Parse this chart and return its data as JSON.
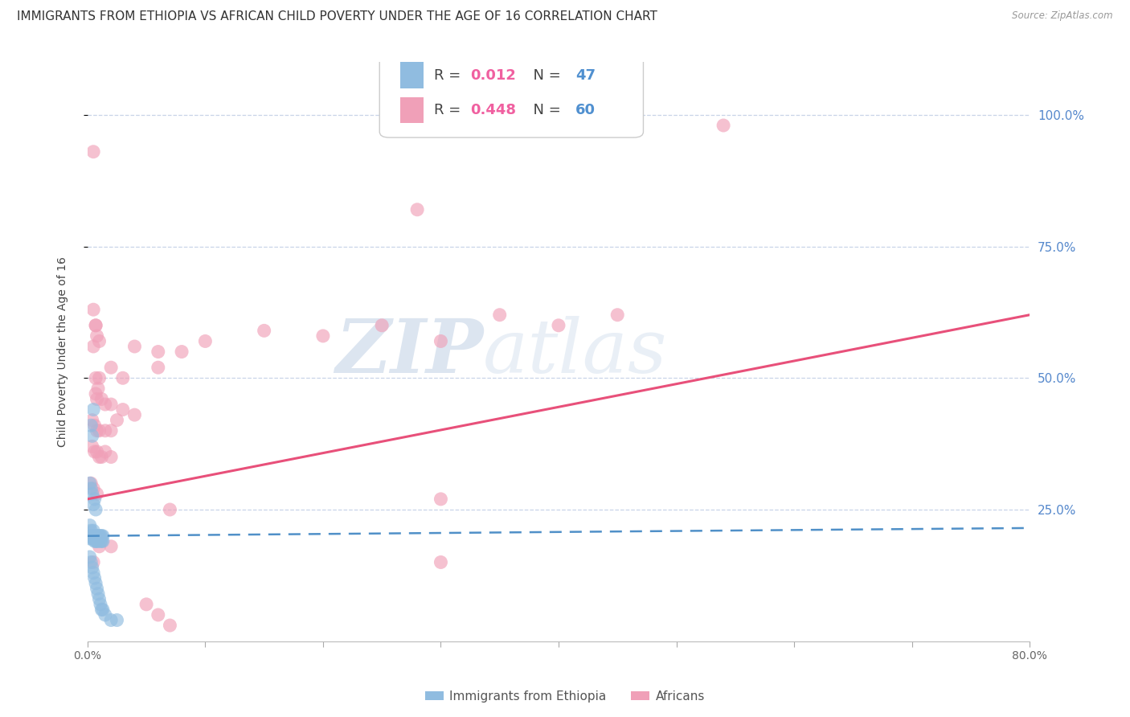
{
  "title": "IMMIGRANTS FROM ETHIOPIA VS AFRICAN CHILD POVERTY UNDER THE AGE OF 16 CORRELATION CHART",
  "source": "Source: ZipAtlas.com",
  "ylabel": "Child Poverty Under the Age of 16",
  "ytick_labels": [
    "100.0%",
    "75.0%",
    "50.0%",
    "25.0%"
  ],
  "ytick_values": [
    1.0,
    0.75,
    0.5,
    0.25
  ],
  "xlim": [
    0.0,
    0.8
  ],
  "ylim": [
    0.0,
    1.1
  ],
  "watermark_line1": "ZIP",
  "watermark_line2": "atlas",
  "blue_color": "#90bce0",
  "pink_color": "#f0a0b8",
  "blue_line_color": "#5090c8",
  "pink_line_color": "#e8507a",
  "blue_regression": {
    "x_start": 0.0,
    "x_end": 0.8,
    "y_start": 0.2,
    "y_end": 0.215
  },
  "pink_regression": {
    "x_start": 0.0,
    "x_end": 0.8,
    "y_start": 0.27,
    "y_end": 0.62
  },
  "background_color": "#ffffff",
  "grid_color": "#c8d4e8",
  "title_fontsize": 11,
  "axis_label_fontsize": 10,
  "tick_fontsize": 10,
  "legend_fontsize": 12,
  "legend1_r_color": "#f090b0",
  "legend1_n_color": "#5090d0",
  "legend2_r_color": "#f090b0",
  "legend2_n_color": "#5090d0"
}
